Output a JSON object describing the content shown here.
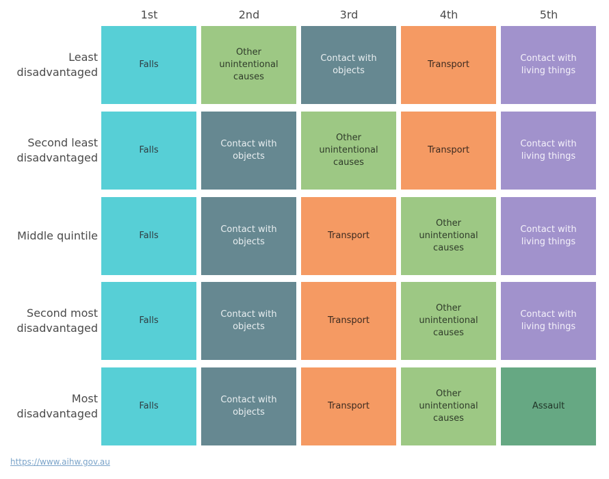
{
  "chart_data": {
    "type": "table",
    "columns": [
      "1st",
      "2nd",
      "3rd",
      "4th",
      "5th"
    ],
    "rows": [
      {
        "label": "Least disadvantaged",
        "label_lines": [
          "Least",
          "disadvantaged"
        ],
        "cells": [
          {
            "text": "Falls",
            "category": "falls"
          },
          {
            "text": "Other unintentional causes",
            "lines": [
              "Other unintentional",
              "causes"
            ],
            "category": "other"
          },
          {
            "text": "Contact with objects",
            "category": "objects"
          },
          {
            "text": "Transport",
            "category": "transport"
          },
          {
            "text": "Contact with living things",
            "lines": [
              "Contact with",
              "living things"
            ],
            "category": "living"
          }
        ]
      },
      {
        "label": "Second least disadvantaged",
        "label_lines": [
          "Second least",
          "disadvantaged"
        ],
        "cells": [
          {
            "text": "Falls",
            "category": "falls"
          },
          {
            "text": "Contact with objects",
            "category": "objects"
          },
          {
            "text": "Other unintentional causes",
            "lines": [
              "Other unintentional",
              "causes"
            ],
            "category": "other"
          },
          {
            "text": "Transport",
            "category": "transport"
          },
          {
            "text": "Contact with living things",
            "lines": [
              "Contact with",
              "living things"
            ],
            "category": "living"
          }
        ]
      },
      {
        "label": "Middle quintile",
        "label_lines": [
          "Middle quintile"
        ],
        "cells": [
          {
            "text": "Falls",
            "category": "falls"
          },
          {
            "text": "Contact with objects",
            "category": "objects"
          },
          {
            "text": "Transport",
            "category": "transport"
          },
          {
            "text": "Other unintentional causes",
            "lines": [
              "Other unintentional",
              "causes"
            ],
            "category": "other"
          },
          {
            "text": "Contact with living things",
            "lines": [
              "Contact with",
              "living things"
            ],
            "category": "living"
          }
        ]
      },
      {
        "label": "Second most disadvantaged",
        "label_lines": [
          "Second most",
          "disadvantaged"
        ],
        "cells": [
          {
            "text": "Falls",
            "category": "falls"
          },
          {
            "text": "Contact with objects",
            "category": "objects"
          },
          {
            "text": "Transport",
            "category": "transport"
          },
          {
            "text": "Other unintentional causes",
            "lines": [
              "Other unintentional",
              "causes"
            ],
            "category": "other"
          },
          {
            "text": "Contact with living things",
            "lines": [
              "Contact with",
              "living things"
            ],
            "category": "living"
          }
        ]
      },
      {
        "label": "Most disadvantaged",
        "label_lines": [
          "Most",
          "disadvantaged"
        ],
        "cells": [
          {
            "text": "Falls",
            "category": "falls"
          },
          {
            "text": "Contact with objects",
            "category": "objects"
          },
          {
            "text": "Transport",
            "category": "transport"
          },
          {
            "text": "Other unintentional causes",
            "lines": [
              "Other unintentional",
              "causes"
            ],
            "category": "other"
          },
          {
            "text": "Assault",
            "category": "assault"
          }
        ]
      }
    ],
    "category_colors": {
      "falls": "#57cfd6",
      "other": "#9dc884",
      "objects": "#668891",
      "transport": "#f59a63",
      "living": "#a192cc",
      "assault": "#66a883"
    },
    "text_colors": {
      "falls": "#2f3b40",
      "other": "#2f3b2a",
      "objects": "#e8eef0",
      "transport": "#3b2a20",
      "living": "#f4f1fa",
      "assault": "#1f3326"
    }
  },
  "footer": {
    "source_link": "https://www.aihw.gov.au"
  }
}
